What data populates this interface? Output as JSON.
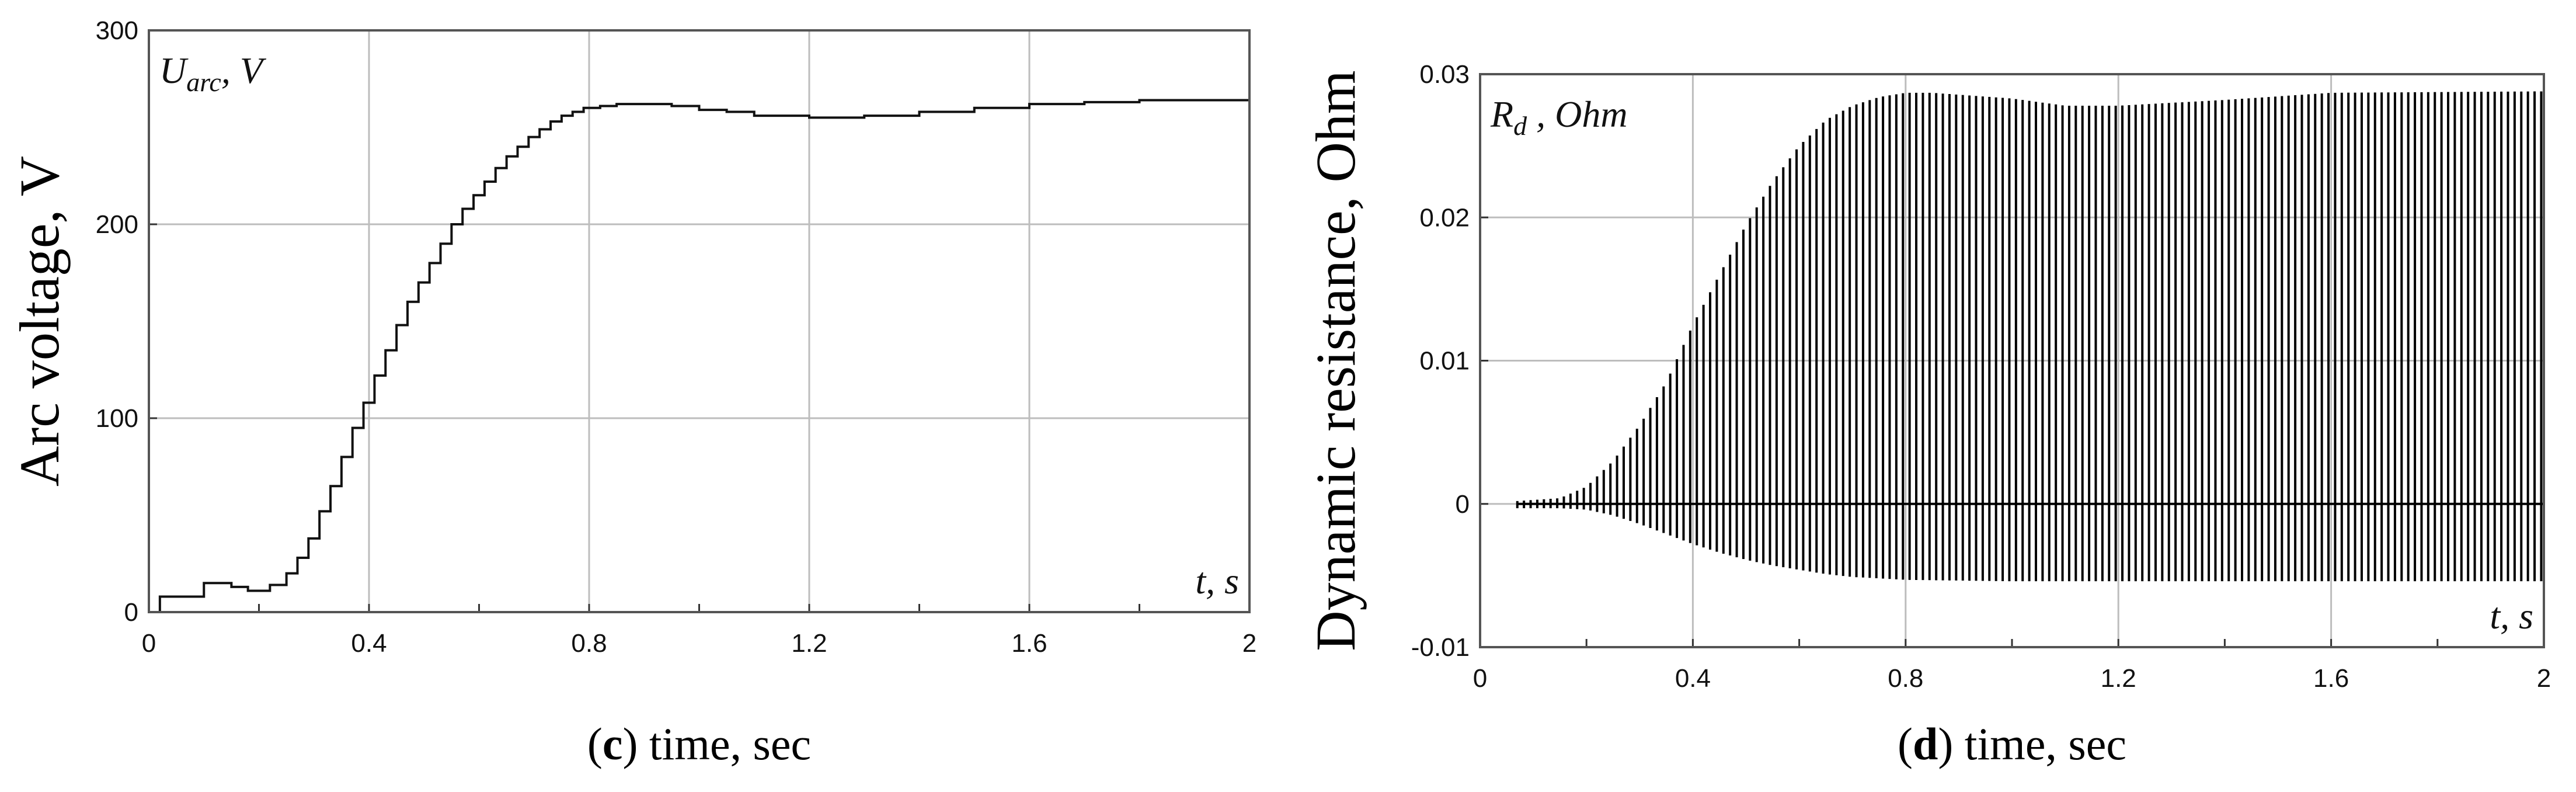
{
  "chart_data": [
    {
      "id": "c",
      "type": "line",
      "ylabel": "Arc voltage, V",
      "series_label": "U",
      "series_label_sub": "arc",
      "series_label_unit": ", V",
      "x_inner_label": "t, s",
      "caption_letter": "c",
      "caption_text": ") time, sec",
      "caption_open": "(",
      "xlim": [
        0,
        2
      ],
      "ylim": [
        0,
        300
      ],
      "xticks": [
        "0",
        "0.4",
        "0.8",
        "1.2",
        "1.6",
        "2"
      ],
      "yticks": [
        "0",
        "100",
        "200",
        "300"
      ],
      "grid": true,
      "series": [
        {
          "name": "Uarc",
          "x": [
            0,
            0.02,
            0.1,
            0.15,
            0.18,
            0.22,
            0.25,
            0.27,
            0.29,
            0.31,
            0.33,
            0.35,
            0.37,
            0.39,
            0.41,
            0.43,
            0.45,
            0.47,
            0.49,
            0.51,
            0.53,
            0.55,
            0.57,
            0.59,
            0.61,
            0.63,
            0.65,
            0.67,
            0.69,
            0.71,
            0.73,
            0.75,
            0.77,
            0.79,
            0.82,
            0.85,
            0.95,
            1.0,
            1.05,
            1.1,
            1.2,
            1.3,
            1.4,
            1.5,
            1.6,
            1.7,
            1.8,
            1.9,
            2.0
          ],
          "y": [
            0,
            8,
            15,
            13,
            11,
            14,
            20,
            28,
            38,
            52,
            65,
            80,
            95,
            108,
            122,
            135,
            148,
            160,
            170,
            180,
            190,
            200,
            208,
            215,
            222,
            229,
            235,
            240,
            245,
            249,
            253,
            256,
            258,
            260,
            261,
            262,
            261,
            259,
            258,
            256,
            255,
            256,
            258,
            260,
            262,
            263,
            264,
            264,
            264
          ]
        }
      ]
    },
    {
      "id": "d",
      "type": "line",
      "ylabel": "Dynamic resistance, Ohm",
      "series_label": "R",
      "series_label_sub": "d",
      "series_label_unit": " , Ohm",
      "x_inner_label": "t, s",
      "caption_letter": "d",
      "caption_text": ") time, sec",
      "caption_open": "(",
      "xlim": [
        0,
        2
      ],
      "ylim": [
        -0.01,
        0.03
      ],
      "xticks": [
        "0",
        "0.4",
        "0.8",
        "1.2",
        "1.6",
        "2"
      ],
      "yticks": [
        "-0.01",
        "0",
        "0.01",
        "0.02",
        "0.03"
      ],
      "grid": true,
      "series": [
        {
          "name": "Rd",
          "description": "dense oscillation between an upper and lower envelope",
          "t_start": 0.07,
          "period": 0.0125,
          "upper_envelope": {
            "x": [
              0.07,
              0.15,
              0.2,
              0.25,
              0.3,
              0.35,
              0.4,
              0.45,
              0.5,
              0.55,
              0.6,
              0.65,
              0.7,
              0.75,
              0.8,
              0.85,
              1.0,
              1.1,
              1.2,
              1.4,
              1.6,
              2.0
            ],
            "y": [
              0.0002,
              0.0004,
              0.0012,
              0.003,
              0.0055,
              0.0085,
              0.0125,
              0.016,
              0.0195,
              0.0225,
              0.025,
              0.0268,
              0.0278,
              0.0284,
              0.0287,
              0.0287,
              0.0283,
              0.0278,
              0.0278,
              0.0282,
              0.0287,
              0.0288
            ]
          },
          "lower_envelope": {
            "x": [
              0.07,
              0.15,
              0.2,
              0.25,
              0.3,
              0.35,
              0.4,
              0.45,
              0.5,
              0.55,
              0.6,
              0.65,
              0.7,
              0.8,
              1.0,
              2.0
            ],
            "y": [
              -0.0003,
              -0.0003,
              -0.0004,
              -0.0008,
              -0.0014,
              -0.0021,
              -0.0028,
              -0.0034,
              -0.0039,
              -0.0043,
              -0.0046,
              -0.0049,
              -0.0051,
              -0.0053,
              -0.0054,
              -0.0054
            ]
          }
        }
      ]
    }
  ]
}
